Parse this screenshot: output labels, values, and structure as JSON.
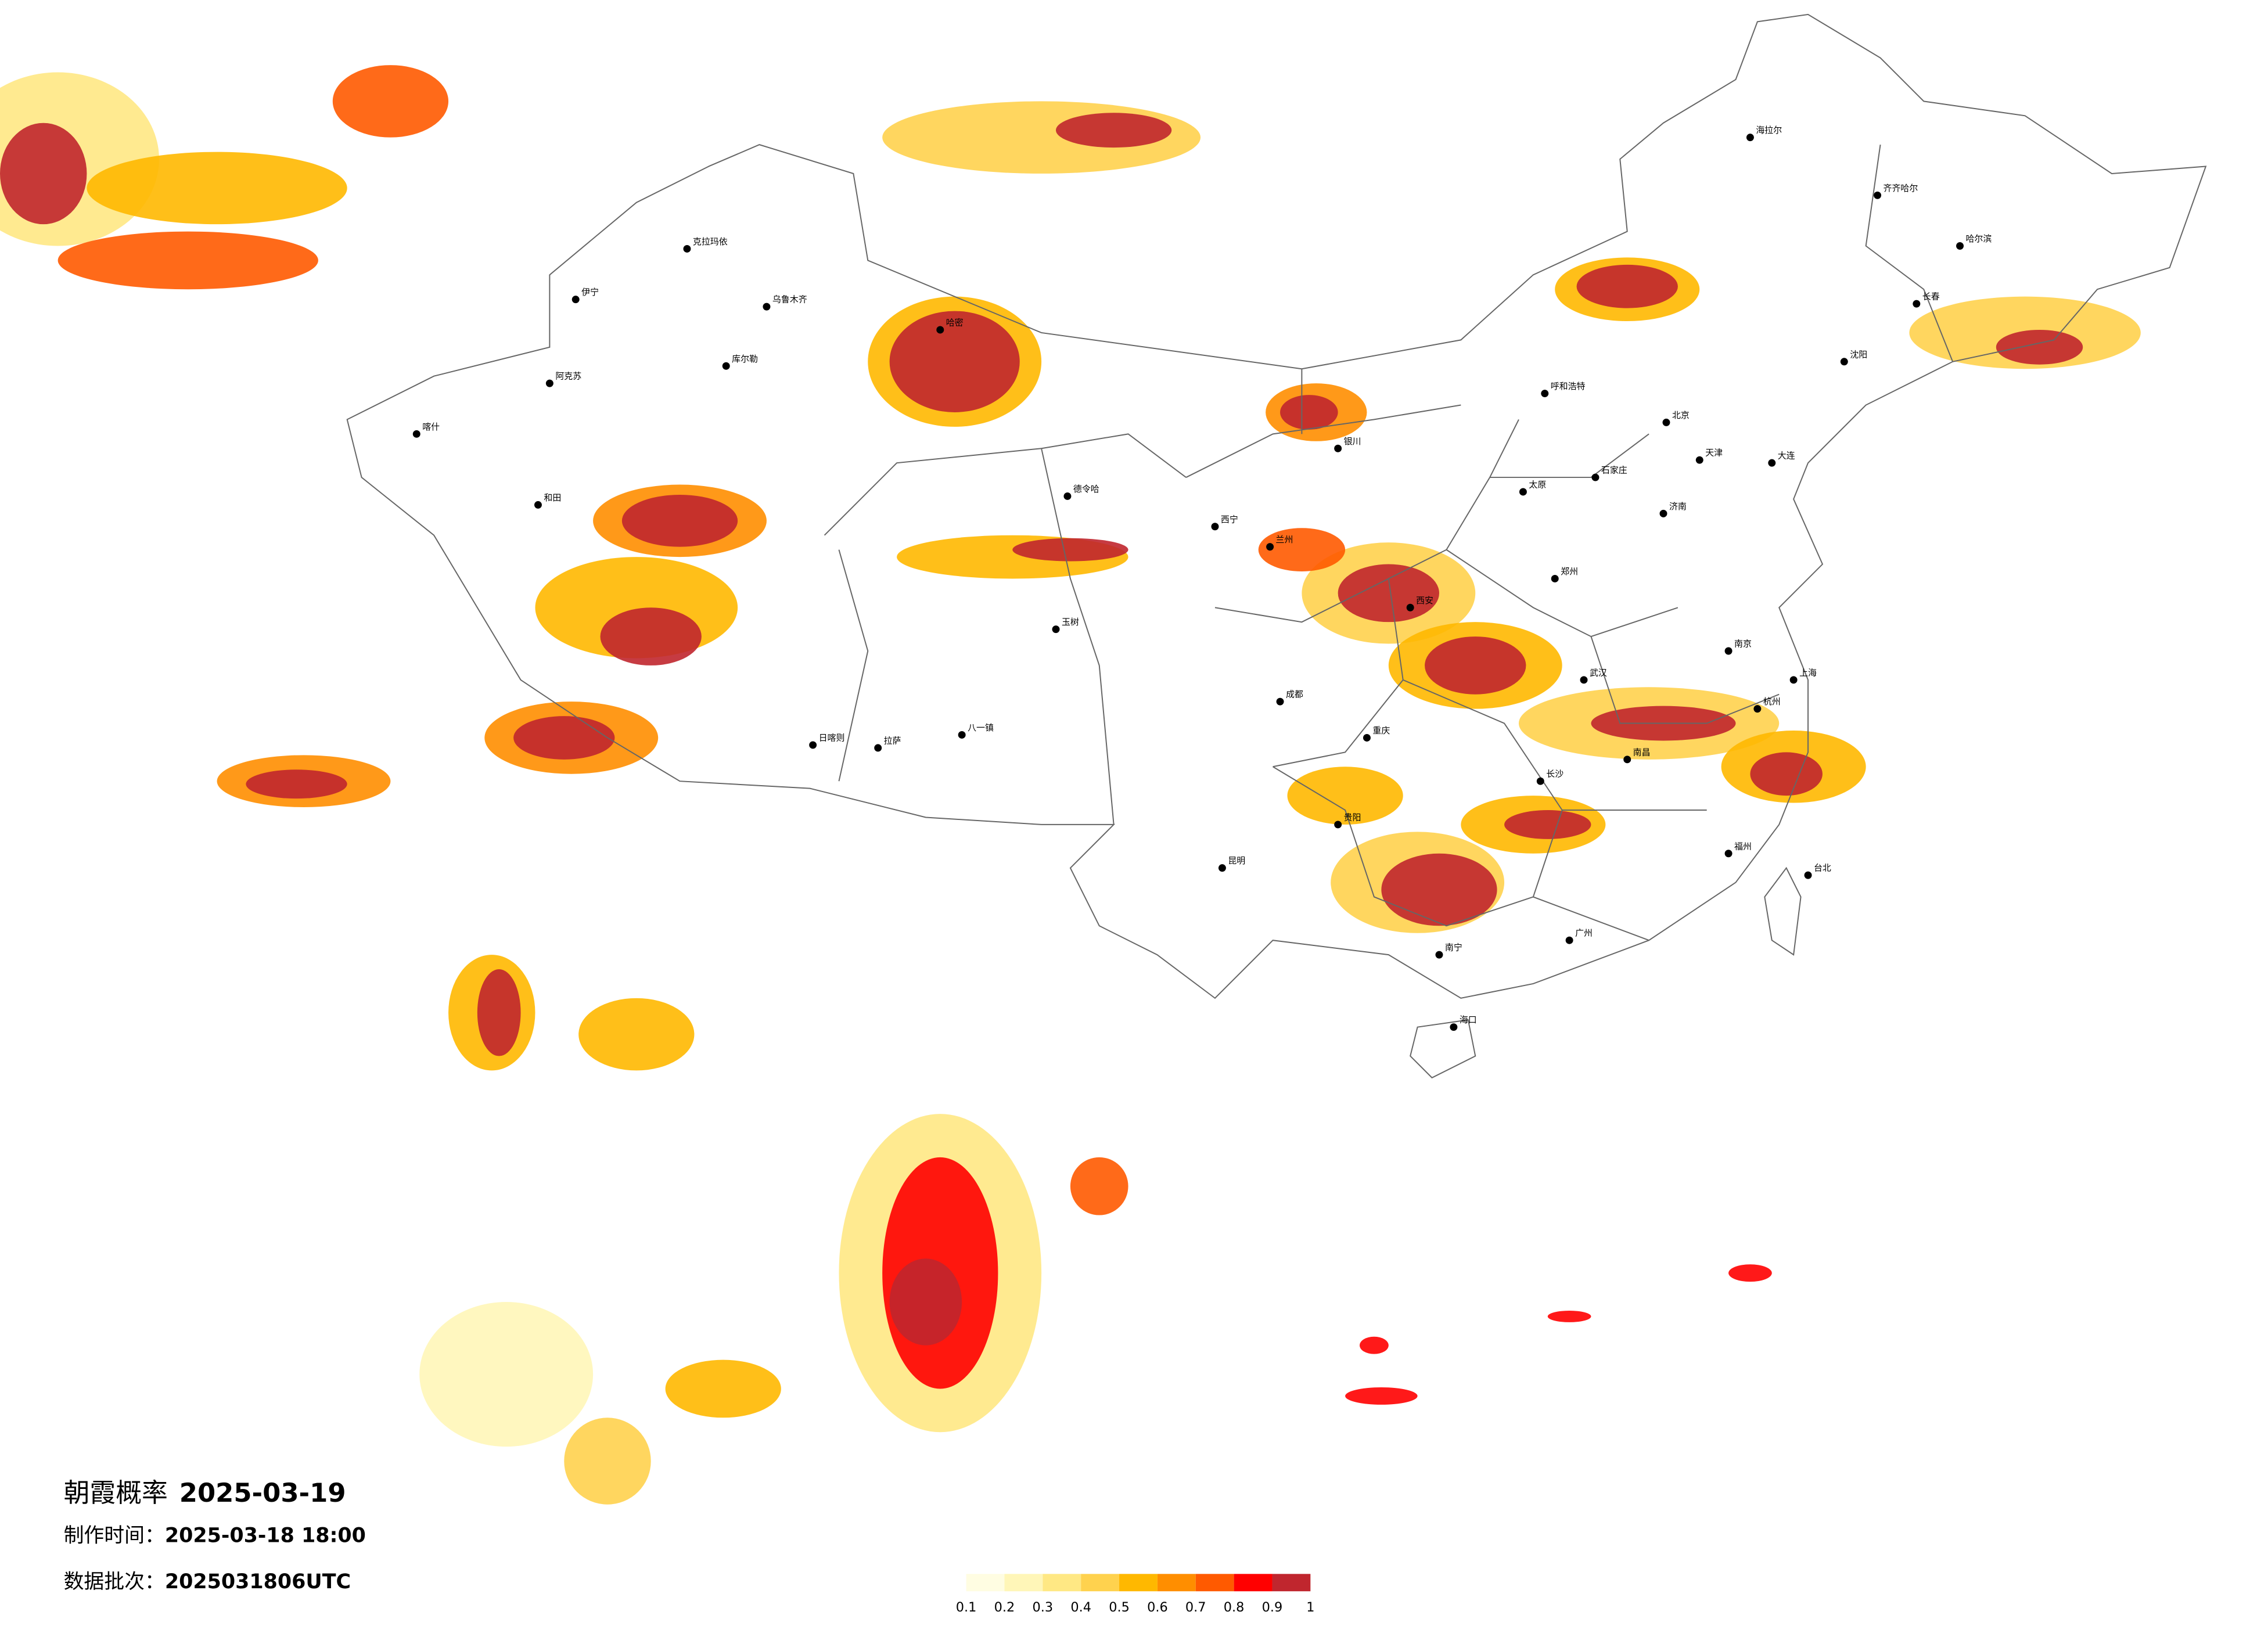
{
  "title": "朝霞概率",
  "date": "2025-03-19",
  "made_label": "制作时间：",
  "made_time": "2025-03-18 18:00",
  "batch_label": "数据批次：",
  "batch": "2025031806UTC",
  "legend": {
    "ticks": [
      0.1,
      0.2,
      0.3,
      0.4,
      0.5,
      0.6,
      0.7,
      0.8,
      0.9,
      1
    ],
    "colors": [
      "#fffde2",
      "#fff6b8",
      "#ffe884",
      "#ffd24e",
      "#ffb800",
      "#ff8e00",
      "#ff5a00",
      "#ff0000",
      "#c0262e"
    ]
  },
  "cities": [
    "克拉玛依",
    "乌鲁木齐",
    "伊宁",
    "阿克苏",
    "喀什",
    "和田",
    "库尔勒",
    "哈密",
    "拉萨",
    "日喀则",
    "八一镇",
    "德令哈",
    "西宁",
    "兰州",
    "银川",
    "呼和浩特",
    "北京",
    "天津",
    "石家庄",
    "太原",
    "西安",
    "郑州",
    "济南",
    "南京",
    "上海",
    "杭州",
    "武汉",
    "长沙",
    "南昌",
    "福州",
    "广州",
    "南宁",
    "贵阳",
    "昆明",
    "成都",
    "重庆",
    "海口",
    "哈尔滨",
    "长春",
    "沈阳",
    "大连",
    "台北",
    "齐齐哈尔",
    "海拉尔",
    "玉树"
  ]
}
